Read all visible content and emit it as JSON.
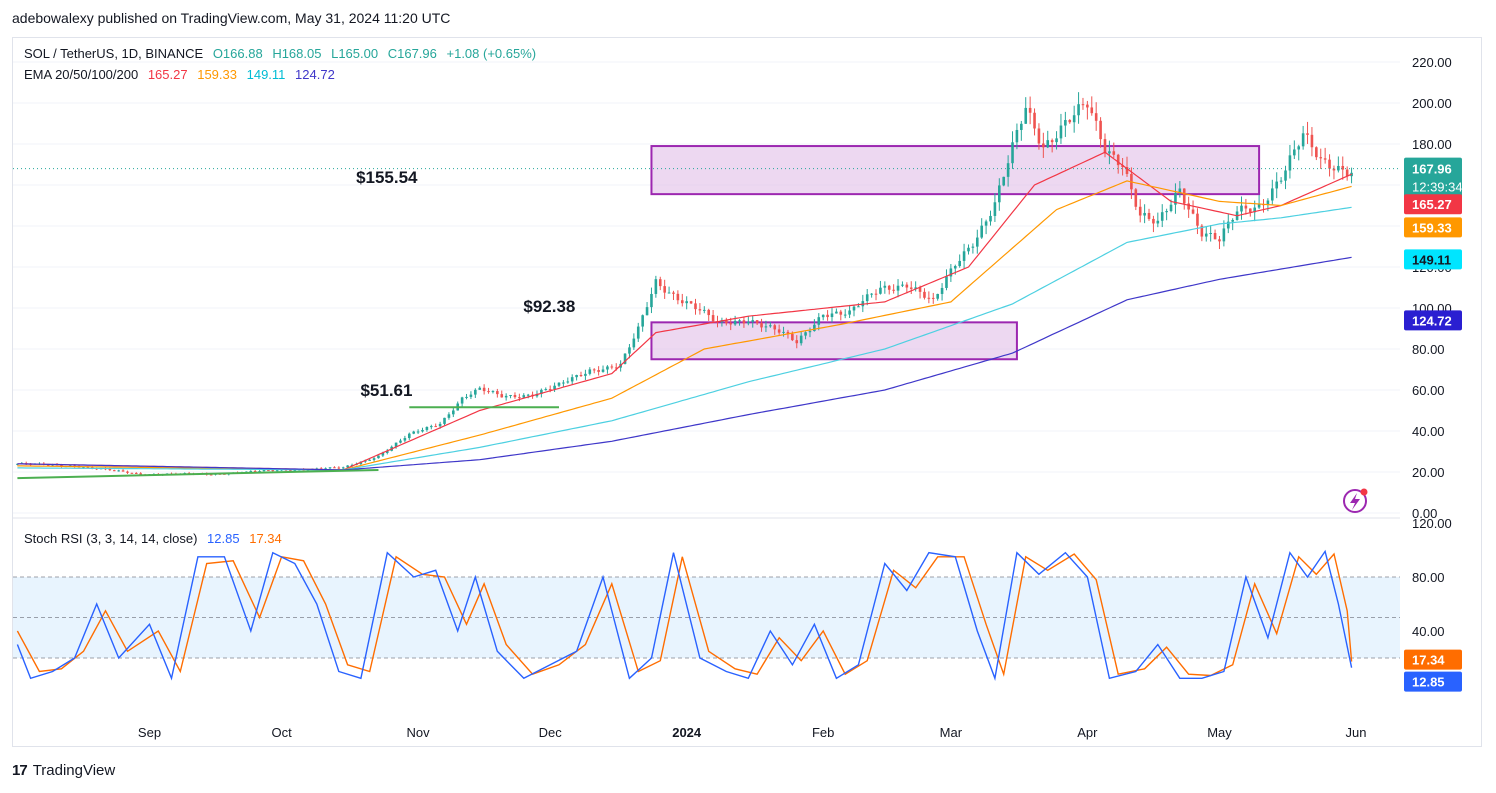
{
  "header": {
    "publisher_line": "adebowalexy published on TradingView.com, May 31, 2024 11:20 UTC"
  },
  "legend": {
    "symbol": "SOL / TetherUS, 1D, BINANCE",
    "open_label": "O166.88",
    "high_label": "H168.05",
    "low_label": "L165.00",
    "close_label": "C167.96",
    "change_label": "+1.08 (+0.65%)",
    "ema_label": "EMA 20/50/100/200",
    "ema20": "165.27",
    "ema50": "159.33",
    "ema100": "149.11",
    "ema200": "124.72",
    "stoch_label": "Stoch RSI (3, 3, 14, 14, close)",
    "stoch_k": "12.85",
    "stoch_d": "17.34"
  },
  "footer": {
    "brand": "TradingView"
  },
  "colors": {
    "up": "#26a69a",
    "down": "#ef5350",
    "ema20": "#f23645",
    "ema50": "#ff9800",
    "ema100": "#4dd0e1",
    "ema200": "#3f37c9",
    "zone_fill": "#e1bee7",
    "zone_stroke": "#9c27b0",
    "trendline": "#4caf50",
    "stoch_k": "#2962ff",
    "stoch_d": "#ff6d00"
  },
  "chart_data": [
    {
      "type": "candlestick",
      "title": "SOL / TetherUS, 1D, BINANCE",
      "ylim": [
        0,
        220
      ],
      "y_ticks": [
        "220.00",
        "200.00",
        "180.00",
        "160.00",
        "140.00",
        "120.00",
        "100.00",
        "80.00",
        "60.00",
        "40.00",
        "20.00",
        "0.00"
      ],
      "x_ticks": [
        "Sep",
        "Oct",
        "Nov",
        "Dec",
        "2024",
        "Feb",
        "Mar",
        "Apr",
        "May",
        "Jun"
      ],
      "last_price": "167.96",
      "countdown": "12:39:34",
      "annotations": [
        "$51.61",
        "$92.38",
        "$155.54"
      ],
      "zones": [
        {
          "from": "2023-12-24",
          "to": "2024-03-16",
          "low": 75,
          "high": 93
        },
        {
          "from": "2023-12-24",
          "to": "2024-05-10",
          "low": 155.54,
          "high": 179
        }
      ],
      "trendlines": [
        {
          "from": [
            "2023-08-02",
            17
          ],
          "to": [
            "2023-10-23",
            21
          ]
        },
        {
          "from": [
            "2023-10-30",
            51.61
          ],
          "to": [
            "2023-12-03",
            51.61
          ]
        }
      ],
      "price_keypoints": [
        [
          "2023-08-02",
          24
        ],
        [
          "2023-08-15",
          23
        ],
        [
          "2023-08-30",
          19
        ],
        [
          "2023-09-15",
          19
        ],
        [
          "2023-10-01",
          21
        ],
        [
          "2023-10-15",
          22
        ],
        [
          "2023-10-23",
          28
        ],
        [
          "2023-10-30",
          38
        ],
        [
          "2023-11-06",
          44
        ],
        [
          "2023-11-11",
          56
        ],
        [
          "2023-11-15",
          60
        ],
        [
          "2023-11-20",
          57
        ],
        [
          "2023-11-27",
          58
        ],
        [
          "2023-12-03",
          62
        ],
        [
          "2023-12-10",
          70
        ],
        [
          "2023-12-17",
          72
        ],
        [
          "2023-12-21",
          89
        ],
        [
          "2023-12-25",
          113
        ],
        [
          "2023-12-29",
          107
        ],
        [
          "2024-01-03",
          100
        ],
        [
          "2024-01-08",
          92
        ],
        [
          "2024-01-15",
          95
        ],
        [
          "2024-01-22",
          88
        ],
        [
          "2024-01-26",
          83
        ],
        [
          "2024-02-01",
          98
        ],
        [
          "2024-02-07",
          97
        ],
        [
          "2024-02-14",
          110
        ],
        [
          "2024-02-20",
          112
        ],
        [
          "2024-02-26",
          102
        ],
        [
          "2024-03-02",
          122
        ],
        [
          "2024-03-07",
          136
        ],
        [
          "2024-03-11",
          150
        ],
        [
          "2024-03-14",
          170
        ],
        [
          "2024-03-18",
          198
        ],
        [
          "2024-03-22",
          180
        ],
        [
          "2024-03-27",
          190
        ],
        [
          "2024-04-01",
          198
        ],
        [
          "2024-04-05",
          178
        ],
        [
          "2024-04-09",
          172
        ],
        [
          "2024-04-13",
          145
        ],
        [
          "2024-04-17",
          140
        ],
        [
          "2024-04-22",
          158
        ],
        [
          "2024-04-27",
          138
        ],
        [
          "2024-05-01",
          133
        ],
        [
          "2024-05-05",
          146
        ],
        [
          "2024-05-10",
          150
        ],
        [
          "2024-05-15",
          165
        ],
        [
          "2024-05-20",
          183
        ],
        [
          "2024-05-24",
          171
        ],
        [
          "2024-05-31",
          167.96
        ]
      ],
      "ema_keypoints": {
        "ema20": [
          [
            "2023-08-02",
            24
          ],
          [
            "2023-10-15",
            21
          ],
          [
            "2023-11-15",
            50
          ],
          [
            "2023-12-15",
            68
          ],
          [
            "2023-12-25",
            88
          ],
          [
            "2024-01-15",
            96
          ],
          [
            "2024-02-15",
            103
          ],
          [
            "2024-03-05",
            120
          ],
          [
            "2024-03-20",
            160
          ],
          [
            "2024-04-05",
            176
          ],
          [
            "2024-04-20",
            152
          ],
          [
            "2024-05-05",
            145
          ],
          [
            "2024-05-15",
            150
          ],
          [
            "2024-05-31",
            165.27
          ]
        ],
        "ema50": [
          [
            "2023-08-02",
            23
          ],
          [
            "2023-10-15",
            21
          ],
          [
            "2023-11-15",
            38
          ],
          [
            "2023-12-15",
            56
          ],
          [
            "2024-01-05",
            80
          ],
          [
            "2024-02-05",
            92
          ],
          [
            "2024-03-01",
            103
          ],
          [
            "2024-03-25",
            148
          ],
          [
            "2024-04-10",
            162
          ],
          [
            "2024-05-01",
            152
          ],
          [
            "2024-05-15",
            150
          ],
          [
            "2024-05-31",
            159.33
          ]
        ],
        "ema100": [
          [
            "2023-08-02",
            22
          ],
          [
            "2023-10-15",
            21
          ],
          [
            "2023-11-15",
            32
          ],
          [
            "2023-12-15",
            45
          ],
          [
            "2024-01-15",
            64
          ],
          [
            "2024-02-15",
            80
          ],
          [
            "2024-03-15",
            102
          ],
          [
            "2024-04-10",
            132
          ],
          [
            "2024-05-01",
            141
          ],
          [
            "2024-05-15",
            144
          ],
          [
            "2024-05-31",
            149.11
          ]
        ],
        "ema200": [
          [
            "2023-08-02",
            24
          ],
          [
            "2023-10-15",
            21
          ],
          [
            "2023-11-15",
            26
          ],
          [
            "2023-12-15",
            35
          ],
          [
            "2024-01-15",
            48
          ],
          [
            "2024-02-15",
            60
          ],
          [
            "2024-03-15",
            78
          ],
          [
            "2024-04-10",
            104
          ],
          [
            "2024-05-01",
            114
          ],
          [
            "2024-05-31",
            124.72
          ]
        ]
      }
    },
    {
      "type": "line",
      "title": "Stoch RSI (3, 3, 14, 14, close)",
      "ylim": [
        0,
        120
      ],
      "y_ticks": [
        "120.00",
        "80.00",
        "40.00",
        "0.00"
      ],
      "band": [
        20,
        80
      ],
      "series": [
        {
          "name": "K",
          "last": "12.85"
        },
        {
          "name": "D",
          "last": "17.34"
        }
      ],
      "k_keypoints": [
        [
          "2023-08-02",
          30
        ],
        [
          "2023-08-05",
          5
        ],
        [
          "2023-08-10",
          10
        ],
        [
          "2023-08-15",
          20
        ],
        [
          "2023-08-20",
          60
        ],
        [
          "2023-08-25",
          20
        ],
        [
          "2023-09-01",
          45
        ],
        [
          "2023-09-06",
          5
        ],
        [
          "2023-09-12",
          95
        ],
        [
          "2023-09-18",
          95
        ],
        [
          "2023-09-24",
          40
        ],
        [
          "2023-09-29",
          98
        ],
        [
          "2023-10-04",
          90
        ],
        [
          "2023-10-09",
          60
        ],
        [
          "2023-10-14",
          10
        ],
        [
          "2023-10-19",
          5
        ],
        [
          "2023-10-25",
          98
        ],
        [
          "2023-10-31",
          80
        ],
        [
          "2023-11-05",
          85
        ],
        [
          "2023-11-10",
          40
        ],
        [
          "2023-11-14",
          80
        ],
        [
          "2023-11-19",
          25
        ],
        [
          "2023-11-25",
          5
        ],
        [
          "2023-12-01",
          15
        ],
        [
          "2023-12-07",
          25
        ],
        [
          "2023-12-13",
          80
        ],
        [
          "2023-12-19",
          5
        ],
        [
          "2023-12-24",
          20
        ],
        [
          "2023-12-29",
          98
        ],
        [
          "2024-01-04",
          20
        ],
        [
          "2024-01-10",
          10
        ],
        [
          "2024-01-15",
          5
        ],
        [
          "2024-01-20",
          40
        ],
        [
          "2024-01-25",
          15
        ],
        [
          "2024-01-30",
          45
        ],
        [
          "2024-02-04",
          5
        ],
        [
          "2024-02-09",
          15
        ],
        [
          "2024-02-15",
          90
        ],
        [
          "2024-02-20",
          70
        ],
        [
          "2024-02-25",
          98
        ],
        [
          "2024-03-02",
          95
        ],
        [
          "2024-03-07",
          40
        ],
        [
          "2024-03-11",
          5
        ],
        [
          "2024-03-16",
          98
        ],
        [
          "2024-03-21",
          82
        ],
        [
          "2024-03-27",
          98
        ],
        [
          "2024-04-01",
          80
        ],
        [
          "2024-04-06",
          5
        ],
        [
          "2024-04-12",
          10
        ],
        [
          "2024-04-17",
          30
        ],
        [
          "2024-04-22",
          5
        ],
        [
          "2024-04-27",
          5
        ],
        [
          "2024-05-02",
          10
        ],
        [
          "2024-05-07",
          80
        ],
        [
          "2024-05-12",
          35
        ],
        [
          "2024-05-17",
          98
        ],
        [
          "2024-05-21",
          80
        ],
        [
          "2024-05-25",
          99
        ],
        [
          "2024-05-28",
          60
        ],
        [
          "2024-05-31",
          12.85
        ]
      ],
      "d_keypoints": [
        [
          "2023-08-02",
          40
        ],
        [
          "2023-08-07",
          10
        ],
        [
          "2023-08-12",
          12
        ],
        [
          "2023-08-17",
          25
        ],
        [
          "2023-08-22",
          55
        ],
        [
          "2023-08-27",
          25
        ],
        [
          "2023-09-03",
          40
        ],
        [
          "2023-09-08",
          10
        ],
        [
          "2023-09-14",
          90
        ],
        [
          "2023-09-20",
          92
        ],
        [
          "2023-09-26",
          50
        ],
        [
          "2023-10-01",
          95
        ],
        [
          "2023-10-06",
          92
        ],
        [
          "2023-10-11",
          60
        ],
        [
          "2023-10-16",
          15
        ],
        [
          "2023-10-21",
          10
        ],
        [
          "2023-10-27",
          95
        ],
        [
          "2023-11-02",
          82
        ],
        [
          "2023-11-07",
          80
        ],
        [
          "2023-11-12",
          45
        ],
        [
          "2023-11-16",
          75
        ],
        [
          "2023-11-21",
          30
        ],
        [
          "2023-11-27",
          8
        ],
        [
          "2023-12-03",
          15
        ],
        [
          "2023-12-09",
          30
        ],
        [
          "2023-12-15",
          75
        ],
        [
          "2023-12-21",
          10
        ],
        [
          "2023-12-26",
          18
        ],
        [
          "2023-12-31",
          95
        ],
        [
          "2024-01-06",
          25
        ],
        [
          "2024-01-12",
          12
        ],
        [
          "2024-01-17",
          8
        ],
        [
          "2024-01-22",
          35
        ],
        [
          "2024-01-27",
          18
        ],
        [
          "2024-02-01",
          40
        ],
        [
          "2024-02-06",
          8
        ],
        [
          "2024-02-11",
          18
        ],
        [
          "2024-02-17",
          85
        ],
        [
          "2024-02-22",
          72
        ],
        [
          "2024-02-27",
          95
        ],
        [
          "2024-03-04",
          95
        ],
        [
          "2024-03-09",
          45
        ],
        [
          "2024-03-13",
          8
        ],
        [
          "2024-03-18",
          95
        ],
        [
          "2024-03-23",
          85
        ],
        [
          "2024-03-29",
          97
        ],
        [
          "2024-04-03",
          78
        ],
        [
          "2024-04-08",
          8
        ],
        [
          "2024-04-14",
          12
        ],
        [
          "2024-04-19",
          28
        ],
        [
          "2024-04-24",
          8
        ],
        [
          "2024-04-29",
          7
        ],
        [
          "2024-05-04",
          15
        ],
        [
          "2024-05-09",
          75
        ],
        [
          "2024-05-14",
          38
        ],
        [
          "2024-05-19",
          95
        ],
        [
          "2024-05-23",
          82
        ],
        [
          "2024-05-27",
          97
        ],
        [
          "2024-05-30",
          55
        ],
        [
          "2024-05-31",
          17.34
        ]
      ]
    }
  ]
}
